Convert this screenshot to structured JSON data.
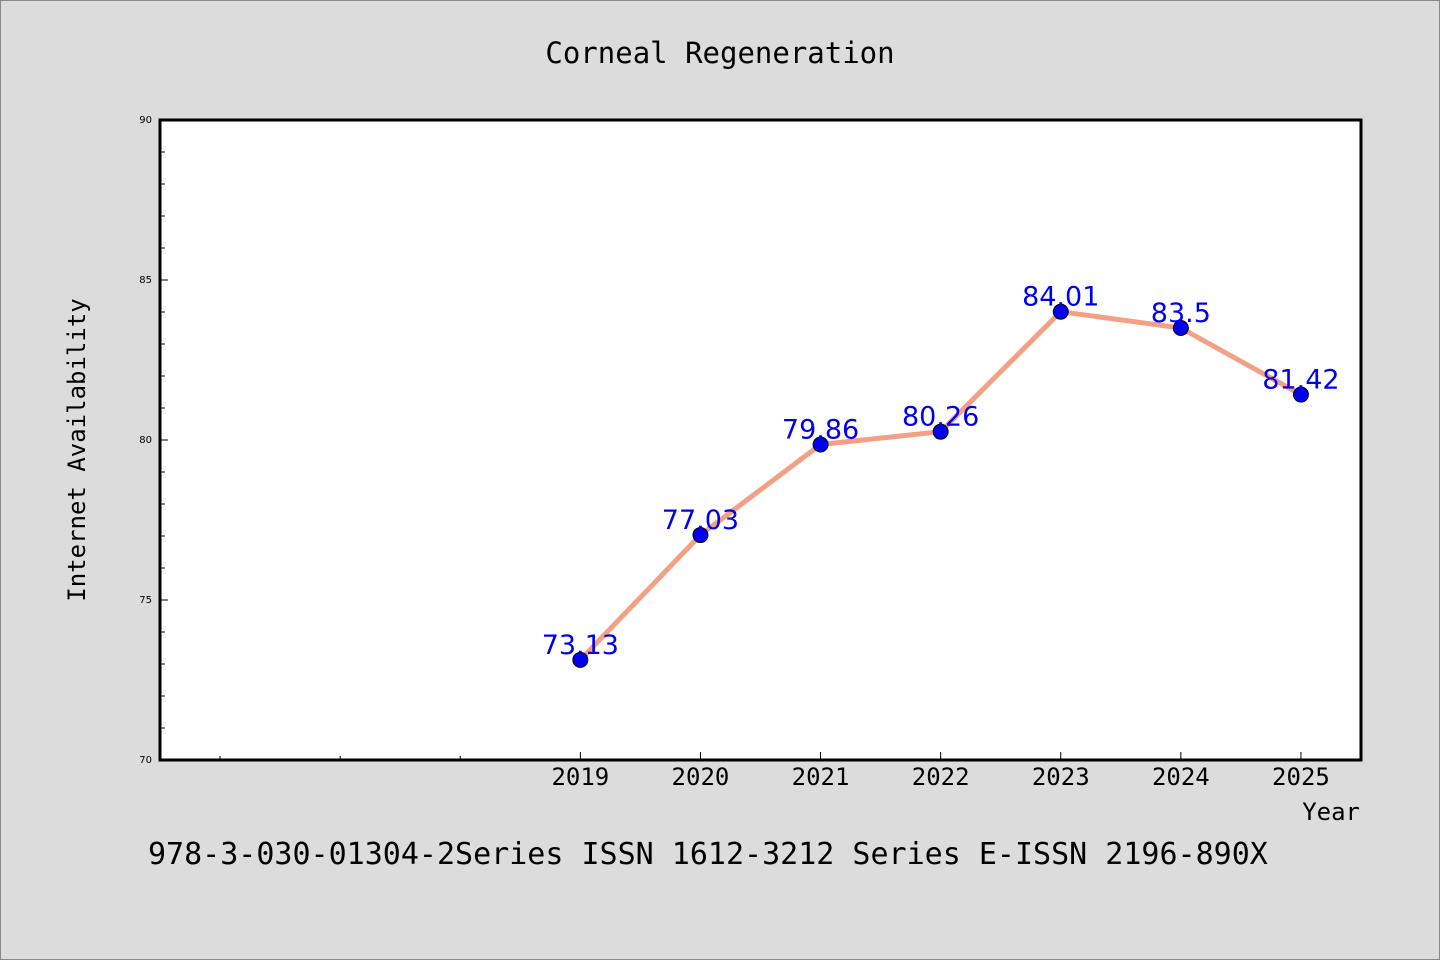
{
  "chart_data": {
    "type": "line",
    "title": "Corneal Regeneration",
    "xlabel": "Year",
    "ylabel": "Internet Availability",
    "x": [
      "2019",
      "2020",
      "2021",
      "2022",
      "2023",
      "2024",
      "2025"
    ],
    "x_axis_range": [
      2015.5,
      2025.5
    ],
    "series": [
      {
        "values": [
          73.13,
          77.03,
          79.86,
          80.26,
          84.01,
          83.5,
          81.42
        ]
      }
    ],
    "data_labels": [
      "73.13",
      "77.03",
      "79.86",
      "80.26",
      "84.01",
      "83.5",
      "81.42"
    ],
    "ylim": [
      70,
      90
    ],
    "yticks": [
      "70",
      "75",
      "80",
      "85",
      "90"
    ],
    "grid": false,
    "line_color": "#f4a084",
    "marker_color": "#0000ee",
    "label_color": "#0000ee"
  },
  "footer_text": "978-3-030-01304-2Series ISSN 1612-3212 Series E-ISSN 2196-890X"
}
